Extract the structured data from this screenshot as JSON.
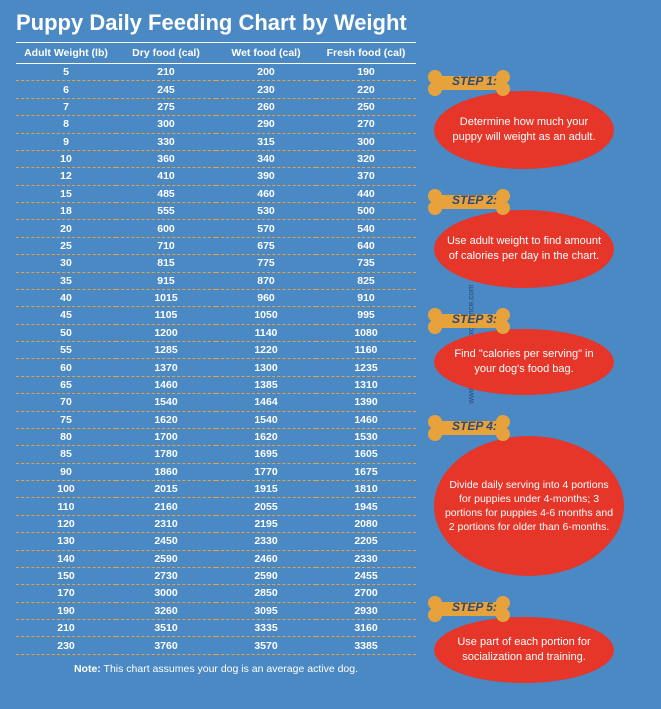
{
  "title": "Puppy Daily Feeding Chart by Weight",
  "table": {
    "columns": [
      "Adult Weight (lb)",
      "Dry food (cal)",
      "Wet food (cal)",
      "Fresh food (cal)"
    ],
    "rows": [
      [
        "5",
        "210",
        "200",
        "190"
      ],
      [
        "6",
        "245",
        "230",
        "220"
      ],
      [
        "7",
        "275",
        "260",
        "250"
      ],
      [
        "8",
        "300",
        "290",
        "270"
      ],
      [
        "9",
        "330",
        "315",
        "300"
      ],
      [
        "10",
        "360",
        "340",
        "320"
      ],
      [
        "12",
        "410",
        "390",
        "370"
      ],
      [
        "15",
        "485",
        "460",
        "440"
      ],
      [
        "18",
        "555",
        "530",
        "500"
      ],
      [
        "20",
        "600",
        "570",
        "540"
      ],
      [
        "25",
        "710",
        "675",
        "640"
      ],
      [
        "30",
        "815",
        "775",
        "735"
      ],
      [
        "35",
        "915",
        "870",
        "825"
      ],
      [
        "40",
        "1015",
        "960",
        "910"
      ],
      [
        "45",
        "1105",
        "1050",
        "995"
      ],
      [
        "50",
        "1200",
        "1140",
        "1080"
      ],
      [
        "55",
        "1285",
        "1220",
        "1160"
      ],
      [
        "60",
        "1370",
        "1300",
        "1235"
      ],
      [
        "65",
        "1460",
        "1385",
        "1310"
      ],
      [
        "70",
        "1540",
        "1464",
        "1390"
      ],
      [
        "75",
        "1620",
        "1540",
        "1460"
      ],
      [
        "80",
        "1700",
        "1620",
        "1530"
      ],
      [
        "85",
        "1780",
        "1695",
        "1605"
      ],
      [
        "90",
        "1860",
        "1770",
        "1675"
      ],
      [
        "100",
        "2015",
        "1915",
        "1810"
      ],
      [
        "110",
        "2160",
        "2055",
        "1945"
      ],
      [
        "120",
        "2310",
        "2195",
        "2080"
      ],
      [
        "130",
        "2450",
        "2330",
        "2205"
      ],
      [
        "140",
        "2590",
        "2460",
        "2330"
      ],
      [
        "150",
        "2730",
        "2590",
        "2455"
      ],
      [
        "170",
        "3000",
        "2850",
        "2700"
      ],
      [
        "190",
        "3260",
        "3095",
        "2930"
      ],
      [
        "210",
        "3510",
        "3335",
        "3160"
      ],
      [
        "230",
        "3760",
        "3570",
        "3385"
      ]
    ]
  },
  "note_label": "Note:",
  "note_text": " This chart assumes your dog is an average active dog.",
  "steps": [
    {
      "label": "STEP 1:",
      "text": "Determine how much your puppy will weight as an adult."
    },
    {
      "label": "STEP 2:",
      "text": "Use adult weight to find amount of calories per day in the chart."
    },
    {
      "label": "STEP 3:",
      "text": "Find \"calories per serving\" in your dog's food bag."
    },
    {
      "label": "STEP 4:",
      "text": "Divide daily serving into 4 portions for puppies under 4-months; 3 portions for puppies 4-6 months and 2 portions for older than 6-months."
    },
    {
      "label": "STEP 5:",
      "text": "Use part of each portion for socialization and training."
    }
  ],
  "watermark": "www.dog-training-excellence.com",
  "colors": {
    "background": "#4a89c4",
    "bubble": "#e63529",
    "bone": "#e8a23c",
    "dash": "#e8a23c",
    "text": "#ffffff",
    "step_label": "#2a4a7a"
  }
}
